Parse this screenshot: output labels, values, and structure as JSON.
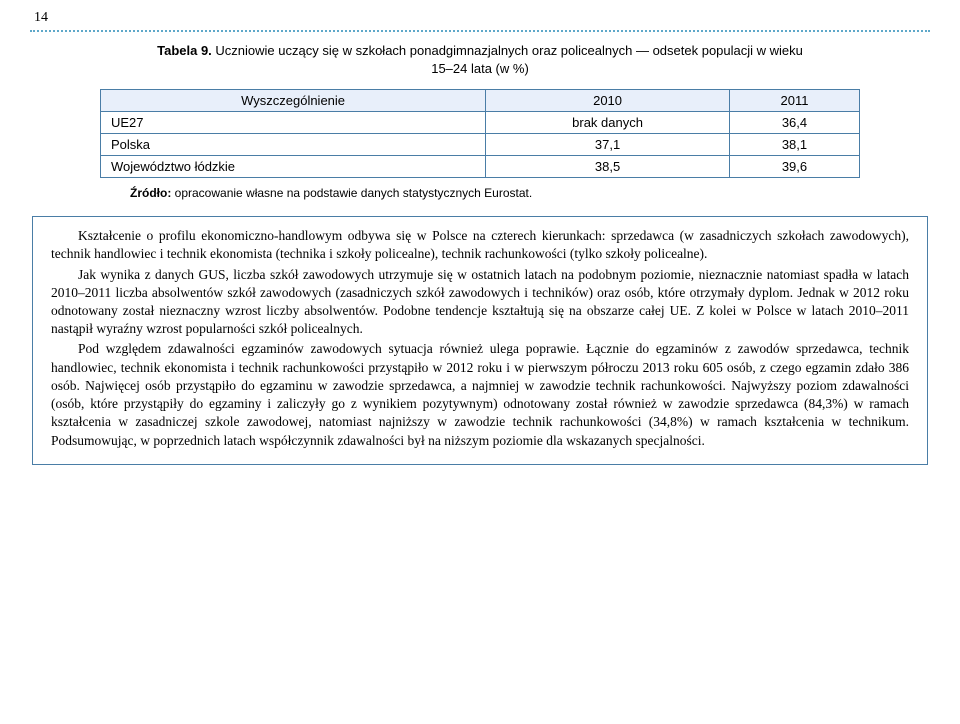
{
  "page_number": "14",
  "table": {
    "label": "Tabela 9.",
    "title_line1": "Uczniowie uczący się w szkołach ponadgimnazjalnych oraz policealnych — odsetek populacji w wieku",
    "title_line2": "15–24 lata (w %)",
    "header": [
      "Wyszczególnienie",
      "2010",
      "2011"
    ],
    "rows": [
      [
        "UE27",
        "brak danych",
        "36,4"
      ],
      [
        "Polska",
        "37,1",
        "38,1"
      ],
      [
        "Województwo łódzkie",
        "38,5",
        "39,6"
      ]
    ]
  },
  "source_label": "Źródło:",
  "source_text": " opracowanie własne na podstawie danych statystycznych Eurostat.",
  "paragraphs": [
    "Kształcenie o profilu ekonomiczno-handlowym odbywa się w Polsce na czterech kierunkach: sprzedawca (w zasadniczych szkołach zawodowych), technik handlowiec i technik ekonomista (technika i szkoły policealne), technik rachunkowości (tylko szkoły policealne).",
    "Jak wynika z danych GUS, liczba szkół zawodowych utrzymuje się w ostatnich latach na podobnym poziomie, nieznacznie natomiast spadła w latach 2010–2011 liczba absolwentów szkół zawodowych (zasadniczych szkół zawodowych i techników) oraz osób, które otrzymały dyplom. Jednak w 2012 roku odnotowany został nieznaczny wzrost liczby absolwentów. Podobne tendencje kształtują się na obszarze całej UE. Z kolei w Polsce w latach 2010–2011 nastąpił wyraźny wzrost popularności szkół policealnych.",
    "Pod względem zdawalności egzaminów zawodowych sytuacja również ulega poprawie. Łącznie do egzaminów z zawodów sprzedawca, technik handlowiec, technik ekonomista i technik rachunkowości przystąpiło w 2012 roku i w pierwszym półroczu 2013 roku 605 osób, z czego egzamin zdało 386 osób. Najwięcej osób przystąpiło do egzaminu w zawodzie sprzedawca, a najmniej w zawodzie technik rachunkowości. Najwyższy poziom zdawalności (osób, które przystąpiły do egzaminy i zaliczyły go z wynikiem pozytywnym) odnotowany został również w zawodzie sprzedawca (84,3%) w ramach kształcenia w zasadniczej szkole zawodowej, natomiast najniższy w zawodzie technik rachunkowości (34,8%) w ramach kształcenia w technikum. Podsumowując, w poprzednich latach współczynnik zdawalności był na niższym poziomie dla wskazanych specjalności."
  ],
  "colors": {
    "dotted": "#5fa8c9",
    "border": "#4a7da6",
    "header_bg": "#e8effa"
  }
}
